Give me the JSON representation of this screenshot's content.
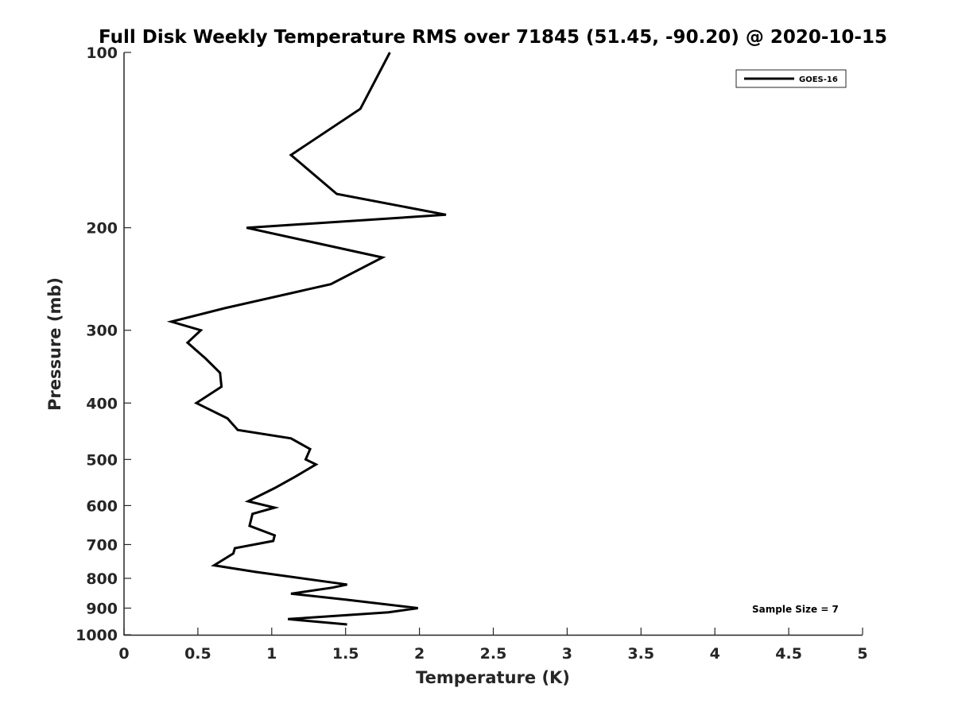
{
  "chart_data": {
    "type": "line",
    "title": "Full Disk Weekly Temperature RMS over 71845 (51.45, -90.20) @ 2020-10-15",
    "xlabel": "Temperature (K)",
    "ylabel": "Pressure (mb)",
    "xlim": [
      0,
      5
    ],
    "ylim": [
      100,
      1000
    ],
    "y_scale": "log",
    "y_reversed": true,
    "x_ticks": [
      "0",
      "0.5",
      "1",
      "1.5",
      "2",
      "2.5",
      "3",
      "3.5",
      "4",
      "4.5",
      "5"
    ],
    "y_ticks": [
      "100",
      "200",
      "300",
      "400",
      "500",
      "600",
      "700",
      "800",
      "900",
      "1000"
    ],
    "grid": false,
    "legend_position": "top-right",
    "annotation": "Sample Size = 7",
    "series": [
      {
        "name": "GOES-16",
        "color": "#000000",
        "points": [
          [
            1.8,
            100
          ],
          [
            1.6,
            125
          ],
          [
            1.13,
            150
          ],
          [
            1.44,
            175
          ],
          [
            2.18,
            190
          ],
          [
            0.83,
            200
          ],
          [
            1.75,
            225
          ],
          [
            1.4,
            250
          ],
          [
            0.68,
            275
          ],
          [
            0.32,
            290
          ],
          [
            0.52,
            300
          ],
          [
            0.43,
            315
          ],
          [
            0.55,
            335
          ],
          [
            0.65,
            355
          ],
          [
            0.66,
            375
          ],
          [
            0.49,
            400
          ],
          [
            0.7,
            425
          ],
          [
            0.77,
            445
          ],
          [
            1.13,
            460
          ],
          [
            1.26,
            480
          ],
          [
            1.23,
            500
          ],
          [
            1.3,
            510
          ],
          [
            1.16,
            535
          ],
          [
            1.02,
            560
          ],
          [
            0.84,
            590
          ],
          [
            1.02,
            605
          ],
          [
            0.87,
            620
          ],
          [
            0.85,
            650
          ],
          [
            1.02,
            675
          ],
          [
            1.01,
            690
          ],
          [
            0.75,
            710
          ],
          [
            0.74,
            725
          ],
          [
            0.61,
            760
          ],
          [
            0.89,
            780
          ],
          [
            1.51,
            820
          ],
          [
            1.41,
            830
          ],
          [
            1.13,
            850
          ],
          [
            1.5,
            870
          ],
          [
            1.99,
            900
          ],
          [
            1.79,
            915
          ],
          [
            1.11,
            940
          ],
          [
            1.51,
            960
          ]
        ]
      }
    ]
  }
}
